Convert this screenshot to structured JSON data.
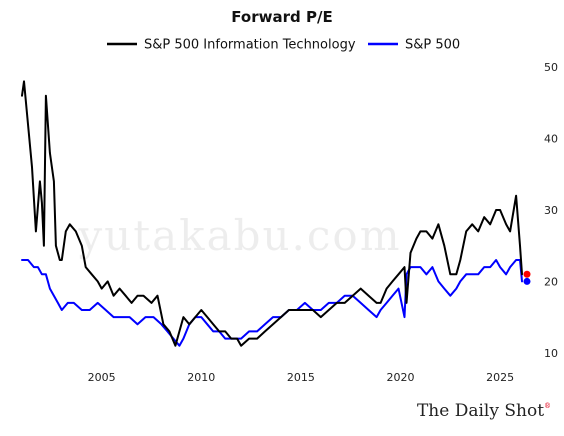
{
  "chart_data": {
    "type": "line",
    "title": "Forward P/E",
    "xlabel": "",
    "ylabel": "",
    "xlim": [
      2000.9,
      2026.5
    ],
    "ylim": [
      9,
      51
    ],
    "x_ticks": [
      2005,
      2010,
      2015,
      2020,
      2025
    ],
    "y_ticks": [
      10,
      20,
      30,
      40,
      50
    ],
    "grid": false,
    "legend_position": "top",
    "y_axis_side": "right",
    "series": [
      {
        "name": "S&P 500 Information Technology",
        "color": "#000000",
        "end_marker_color": "#ff0000",
        "end_value": 21,
        "x": [
          2001.0,
          2001.1,
          2001.3,
          2001.5,
          2001.7,
          2001.9,
          2002.0,
          2002.1,
          2002.2,
          2002.4,
          2002.6,
          2002.7,
          2002.9,
          2003.0,
          2003.2,
          2003.4,
          2003.7,
          2004.0,
          2004.2,
          2004.5,
          2004.8,
          2005.0,
          2005.3,
          2005.6,
          2005.9,
          2006.2,
          2006.5,
          2006.8,
          2007.1,
          2007.5,
          2007.8,
          2008.1,
          2008.4,
          2008.7,
          2008.9,
          2009.1,
          2009.4,
          2009.7,
          2010.0,
          2010.3,
          2010.6,
          2010.9,
          2011.2,
          2011.5,
          2011.8,
          2012.0,
          2012.4,
          2012.8,
          2013.2,
          2013.6,
          2014.0,
          2014.4,
          2014.8,
          2015.2,
          2015.6,
          2016.0,
          2016.4,
          2016.8,
          2017.2,
          2017.6,
          2018.0,
          2018.4,
          2018.8,
          2019.0,
          2019.3,
          2019.6,
          2019.9,
          2020.2,
          2020.3,
          2020.5,
          2020.8,
          2021.0,
          2021.3,
          2021.6,
          2021.9,
          2022.2,
          2022.5,
          2022.8,
          2023.0,
          2023.3,
          2023.6,
          2023.9,
          2024.2,
          2024.5,
          2024.8,
          2025.0,
          2025.3,
          2025.5,
          2025.8,
          2026.0,
          2026.1
        ],
        "y": [
          46,
          48,
          42,
          36,
          27,
          34,
          31,
          25,
          46,
          38,
          34,
          25,
          23,
          23,
          27,
          28,
          27,
          25,
          22,
          21,
          20,
          19,
          20,
          18,
          19,
          18,
          17,
          18,
          18,
          17,
          18,
          14,
          13,
          11,
          13,
          15,
          14,
          15,
          16,
          15,
          14,
          13,
          13,
          12,
          12,
          11,
          12,
          12,
          13,
          14,
          15,
          16,
          16,
          16,
          16,
          15,
          16,
          17,
          17,
          18,
          19,
          18,
          17,
          17,
          19,
          20,
          21,
          22,
          17,
          24,
          26,
          27,
          27,
          26,
          28,
          25,
          21,
          21,
          23,
          27,
          28,
          27,
          29,
          28,
          30,
          30,
          28,
          27,
          32,
          25,
          21
        ]
      },
      {
        "name": "S&P 500",
        "color": "#0000ff",
        "end_marker_color": "#0000ff",
        "end_value": 20,
        "x": [
          2001.0,
          2001.3,
          2001.6,
          2001.8,
          2002.0,
          2002.2,
          2002.4,
          2002.6,
          2002.8,
          2003.0,
          2003.3,
          2003.6,
          2004.0,
          2004.4,
          2004.8,
          2005.2,
          2005.6,
          2006.0,
          2006.4,
          2006.8,
          2007.2,
          2007.6,
          2008.0,
          2008.3,
          2008.6,
          2008.9,
          2009.1,
          2009.4,
          2009.7,
          2010.0,
          2010.3,
          2010.6,
          2010.9,
          2011.2,
          2011.5,
          2011.8,
          2012.0,
          2012.4,
          2012.8,
          2013.2,
          2013.6,
          2014.0,
          2014.4,
          2014.8,
          2015.2,
          2015.6,
          2016.0,
          2016.4,
          2016.8,
          2017.2,
          2017.6,
          2018.0,
          2018.4,
          2018.8,
          2019.0,
          2019.3,
          2019.6,
          2019.9,
          2020.2,
          2020.3,
          2020.5,
          2020.8,
          2021.0,
          2021.3,
          2021.6,
          2021.9,
          2022.2,
          2022.5,
          2022.8,
          2023.0,
          2023.3,
          2023.6,
          2023.9,
          2024.2,
          2024.5,
          2024.8,
          2025.0,
          2025.3,
          2025.5,
          2025.8,
          2026.0,
          2026.1
        ],
        "y": [
          23,
          23,
          22,
          22,
          21,
          21,
          19,
          18,
          17,
          16,
          17,
          17,
          16,
          16,
          17,
          16,
          15,
          15,
          15,
          14,
          15,
          15,
          14,
          13,
          12,
          11,
          12,
          14,
          15,
          15,
          14,
          13,
          13,
          12,
          12,
          12,
          12,
          13,
          13,
          14,
          15,
          15,
          16,
          16,
          17,
          16,
          16,
          17,
          17,
          18,
          18,
          17,
          16,
          15,
          16,
          17,
          18,
          19,
          15,
          21,
          22,
          22,
          22,
          21,
          22,
          20,
          19,
          18,
          19,
          20,
          21,
          21,
          21,
          22,
          22,
          23,
          22,
          21,
          22,
          23,
          23,
          20
        ]
      }
    ]
  },
  "watermark_text": "yutakabu.com",
  "brand_text": "The Daily Shot",
  "brand_superscript": "®"
}
